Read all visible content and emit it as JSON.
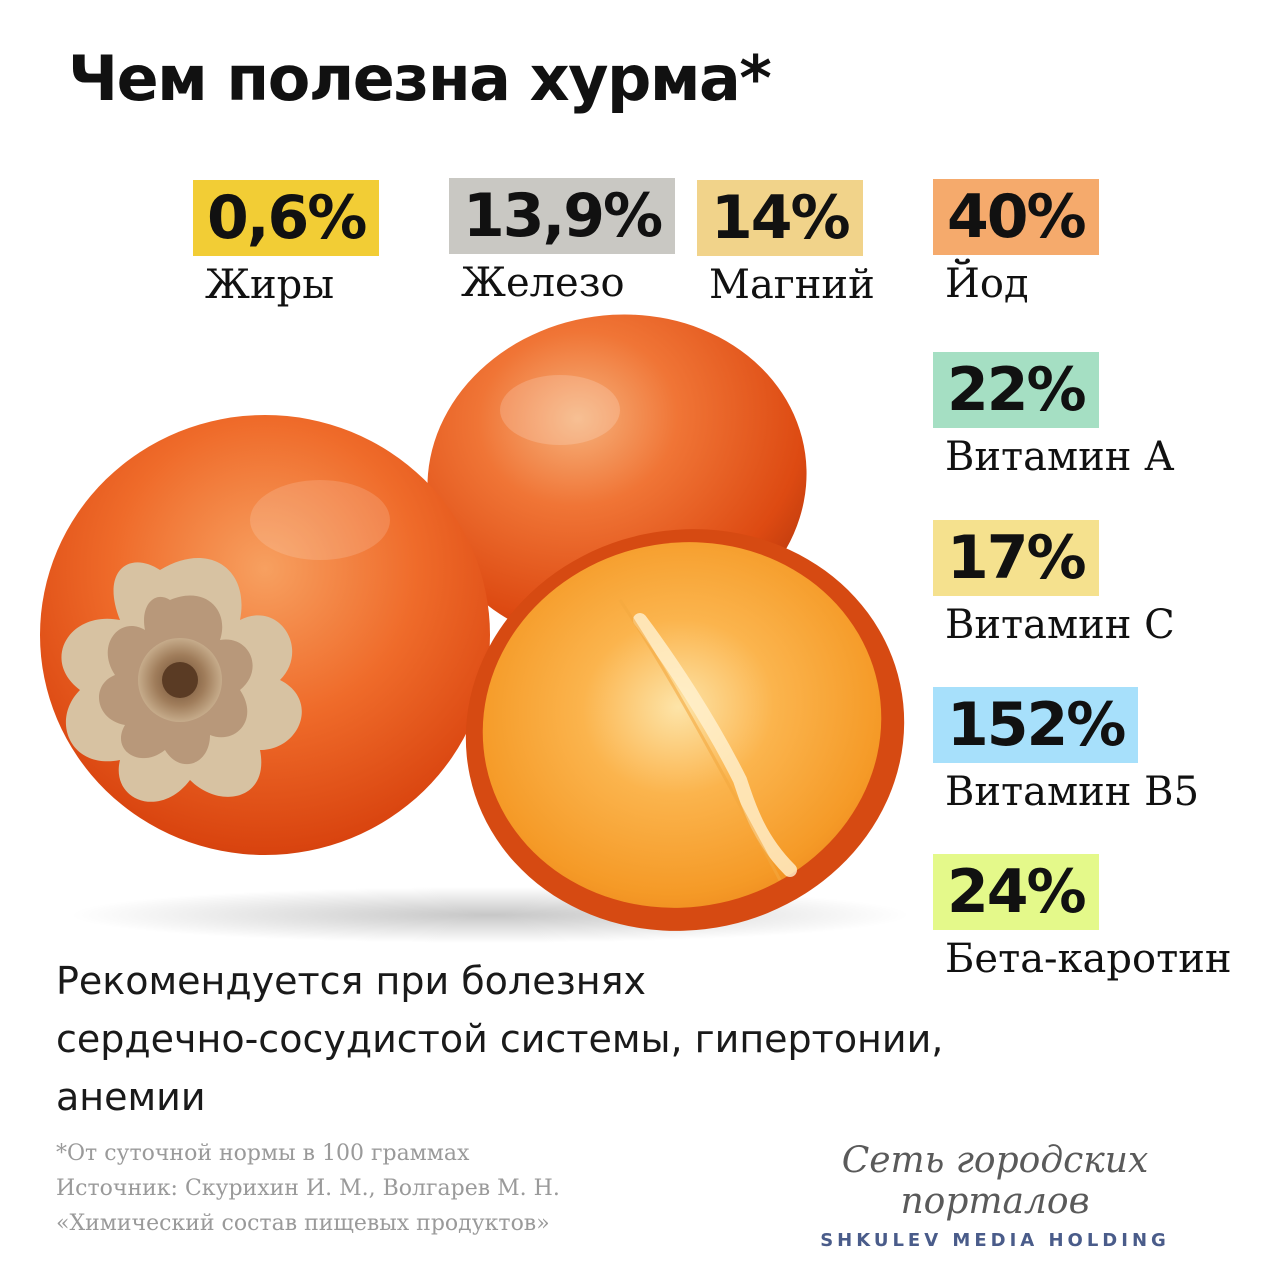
{
  "title": "Чем полезна хурма*",
  "nutrients": [
    {
      "value": "0,6%",
      "label": "Жиры",
      "color": "#f2cd35"
    },
    {
      "value": "13,9%",
      "label": "Железо",
      "color": "#c9c8c3"
    },
    {
      "value": "14%",
      "label": "Магний",
      "color": "#f1d38a"
    },
    {
      "value": "40%",
      "label": "Йод",
      "color": "#f5aa6c"
    },
    {
      "value": "22%",
      "label": "Витамин А",
      "color": "#a5dfc3"
    },
    {
      "value": "17%",
      "label": "Витамин С",
      "color": "#f5e18e"
    },
    {
      "value": "152%",
      "label": "Витамин В5",
      "color": "#a7e0fb"
    },
    {
      "value": "24%",
      "label": "Бета-каротин",
      "color": "#e4f98a"
    }
  ],
  "recommendation": {
    "lines": [
      "Рекомендуется при болезнях",
      "сердечно-сосудистой системы, гипертонии,",
      "анемии"
    ]
  },
  "footnote": {
    "lines": [
      "*От суточной нормы в 100 граммах",
      "Источник: Скурихин И. М., Волгарев М. Н.",
      "«Химический состав пищевых продуктов»"
    ]
  },
  "brand": {
    "script": "Сеть городских порталов",
    "sub": "SHKULEV MEDIA HOLDING"
  },
  "image": {
    "icon": "persimmon-photo"
  }
}
